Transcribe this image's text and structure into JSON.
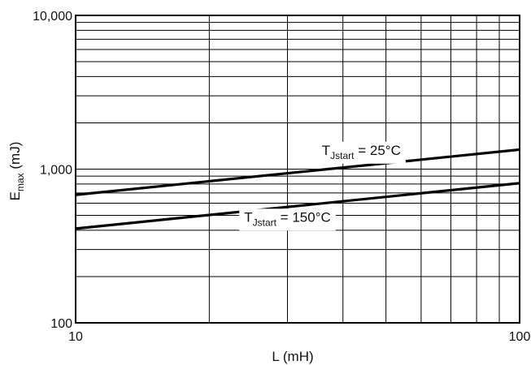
{
  "chart_data": {
    "type": "line",
    "x_scale": "log",
    "y_scale": "log",
    "xlim": [
      10,
      100
    ],
    "ylim": [
      100,
      10000
    ],
    "xlabel": "L (mH)",
    "ylabel": {
      "main": "E",
      "sub": "max",
      "rest": " (mJ)"
    },
    "x_ticks": [
      {
        "value": 10,
        "label": "10"
      },
      {
        "value": 100,
        "label": "100"
      }
    ],
    "y_ticks": [
      {
        "value": 100,
        "label": "100"
      },
      {
        "value": 1000,
        "label": "1,000"
      },
      {
        "value": 10000,
        "label": "10,000"
      }
    ],
    "grid": true,
    "series": [
      {
        "label": {
          "main": "T",
          "sub": "Jstart",
          "rest": " = 25°C"
        },
        "x": [
          10,
          100
        ],
        "y": [
          680,
          1340
        ]
      },
      {
        "label": {
          "main": "T",
          "sub": "Jstart",
          "rest": " = 150°C"
        },
        "x": [
          10,
          100
        ],
        "y": [
          410,
          810
        ]
      }
    ]
  }
}
